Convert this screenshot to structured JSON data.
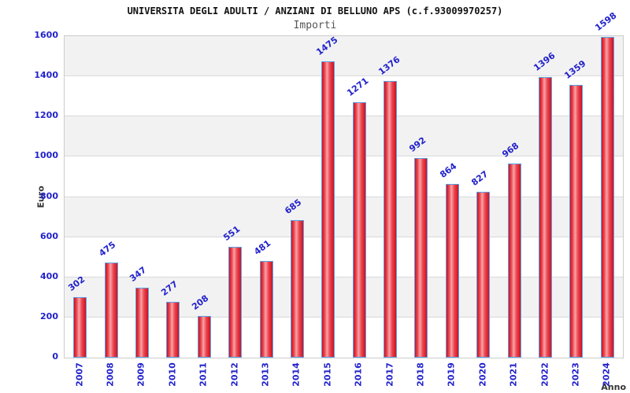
{
  "header": {
    "title": "UNIVERSITA DEGLI ADULTI / ANZIANI DI BELLUNO APS (c.f.93009970257)",
    "subtitle": "Importi"
  },
  "chart_data": {
    "type": "bar",
    "title": "UNIVERSITA DEGLI ADULTI / ANZIANI DI BELLUNO APS (c.f.93009970257)",
    "subtitle": "Importi",
    "xlabel": "Anno",
    "ylabel": "Euro",
    "categories": [
      "2007",
      "2008",
      "2009",
      "2010",
      "2011",
      "2012",
      "2013",
      "2014",
      "2015",
      "2016",
      "2017",
      "2018",
      "2019",
      "2020",
      "2021",
      "2022",
      "2023",
      "2024"
    ],
    "values": [
      302,
      475,
      347,
      277,
      208,
      551,
      481,
      685,
      1475,
      1271,
      1376,
      992,
      864,
      827,
      968,
      1396,
      1359,
      1598
    ],
    "ylim": [
      0,
      1600
    ],
    "ytick_step": 200,
    "grid": "horizontal",
    "legend": "none",
    "bar_labels_shown": true,
    "colors": {
      "tick_label": "#2222cc",
      "value_label": "#2222cc",
      "bar_border": "#5ba3e8",
      "bar_dark": "#cf1020",
      "bar_mid": "#ea4750",
      "bar_light": "#f9a3a8",
      "band_gray": "#f2f2f2",
      "band_white": "#ffffff",
      "gridline": "#d9d9d9",
      "title_color": "#111111",
      "subtitle_color": "#555555",
      "axis_title_color": "#333333"
    }
  }
}
